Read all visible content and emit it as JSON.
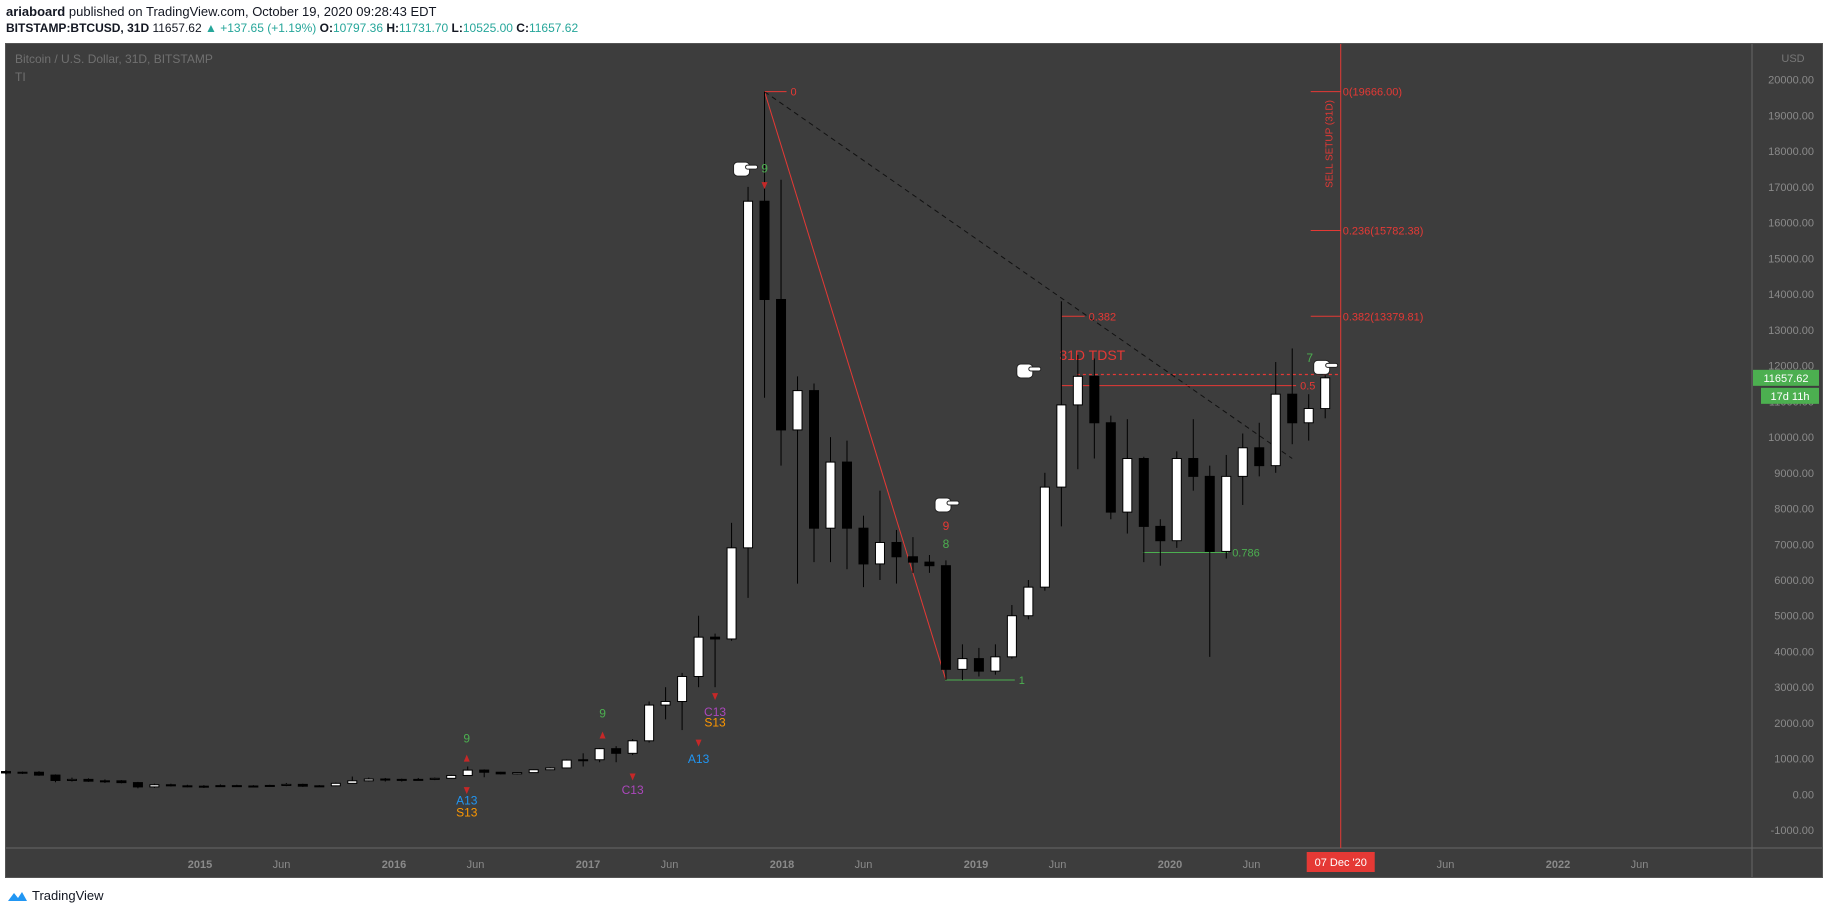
{
  "header": {
    "author": "ariaboard",
    "published": "published on TradingView.com, October 19, 2020 09:28:43 EDT",
    "symbol": "BITSTAMP:BTCUSD, 31D",
    "last": "11657.62",
    "change": "▲ +137.65 (+1.19%)",
    "o_label": "O:",
    "o": "10797.36",
    "h_label": "H:",
    "h": "11731.70",
    "l_label": "L:",
    "l": "10525.00",
    "c_label": "C:",
    "c": "11657.62"
  },
  "pane": {
    "title": "Bitcoin / U.S. Dollar, 31D, BITSTAMP",
    "indicator": "TI"
  },
  "footer": {
    "brand": "TradingView"
  },
  "colors": {
    "background": "#3d3d3d",
    "red": "#e53935",
    "green": "#4caf50",
    "current": "#4caf50"
  },
  "chart_data": {
    "type": "candlestick",
    "title": "Bitcoin / U.S. Dollar, 31D, BITSTAMP",
    "ylim": [
      -1500,
      21000
    ],
    "y_ticks": [
      -1000,
      0,
      1000,
      2000,
      3000,
      4000,
      5000,
      6000,
      7000,
      8000,
      9000,
      10000,
      11000,
      12000,
      13000,
      14000,
      15000,
      16000,
      17000,
      18000,
      19000,
      20000
    ],
    "y_tick_labels": [
      "-1000.00",
      "0.00",
      "1000.00",
      "2000.00",
      "3000.00",
      "4000.00",
      "5000.00",
      "6000.00",
      "7000.00",
      "8000.00",
      "9000.00",
      "10000.00",
      "11000.00",
      "12000.00",
      "13000.00",
      "14000.00",
      "15000.00",
      "16000.00",
      "17000.00",
      "18000.00",
      "19000.00",
      "20000.00"
    ],
    "x_ticks": [
      {
        "label": "2015",
        "t": 2015.0
      },
      {
        "label": "Jun",
        "t": 2015.42
      },
      {
        "label": "2016",
        "t": 2016.0
      },
      {
        "label": "Jun",
        "t": 2016.42
      },
      {
        "label": "2017",
        "t": 2017.0
      },
      {
        "label": "Jun",
        "t": 2017.42
      },
      {
        "label": "2018",
        "t": 2018.0
      },
      {
        "label": "Jun",
        "t": 2018.42
      },
      {
        "label": "2019",
        "t": 2019.0
      },
      {
        "label": "Jun",
        "t": 2019.42
      },
      {
        "label": "2020",
        "t": 2020.0
      },
      {
        "label": "Jun",
        "t": 2020.42
      },
      {
        "label": "Jun",
        "t": 2021.42
      },
      {
        "label": "2022",
        "t": 2022.0
      },
      {
        "label": "Jun",
        "t": 2022.42
      }
    ],
    "xlim": [
      2014.0,
      2023.0
    ],
    "candles": [
      {
        "t": 2014.0,
        "o": 640,
        "h": 680,
        "l": 560,
        "c": 600
      },
      {
        "t": 2014.085,
        "o": 600,
        "h": 640,
        "l": 570,
        "c": 620
      },
      {
        "t": 2014.17,
        "o": 620,
        "h": 650,
        "l": 520,
        "c": 540
      },
      {
        "t": 2014.255,
        "o": 540,
        "h": 560,
        "l": 340,
        "c": 390
      },
      {
        "t": 2014.34,
        "o": 390,
        "h": 470,
        "l": 360,
        "c": 420
      },
      {
        "t": 2014.425,
        "o": 420,
        "h": 450,
        "l": 350,
        "c": 370
      },
      {
        "t": 2014.51,
        "o": 370,
        "h": 420,
        "l": 320,
        "c": 380
      },
      {
        "t": 2014.595,
        "o": 380,
        "h": 400,
        "l": 310,
        "c": 330
      },
      {
        "t": 2014.68,
        "o": 330,
        "h": 350,
        "l": 170,
        "c": 210
      },
      {
        "t": 2014.765,
        "o": 210,
        "h": 300,
        "l": 180,
        "c": 270
      },
      {
        "t": 2014.85,
        "o": 270,
        "h": 300,
        "l": 220,
        "c": 240
      },
      {
        "t": 2014.935,
        "o": 240,
        "h": 270,
        "l": 200,
        "c": 220
      },
      {
        "t": 2015.02,
        "o": 220,
        "h": 260,
        "l": 180,
        "c": 230
      },
      {
        "t": 2015.105,
        "o": 230,
        "h": 280,
        "l": 210,
        "c": 245
      },
      {
        "t": 2015.19,
        "o": 245,
        "h": 270,
        "l": 220,
        "c": 235
      },
      {
        "t": 2015.275,
        "o": 235,
        "h": 260,
        "l": 210,
        "c": 230
      },
      {
        "t": 2015.36,
        "o": 230,
        "h": 270,
        "l": 220,
        "c": 250
      },
      {
        "t": 2015.445,
        "o": 250,
        "h": 320,
        "l": 230,
        "c": 280
      },
      {
        "t": 2015.53,
        "o": 280,
        "h": 300,
        "l": 210,
        "c": 230
      },
      {
        "t": 2015.615,
        "o": 230,
        "h": 260,
        "l": 220,
        "c": 240
      },
      {
        "t": 2015.7,
        "o": 240,
        "h": 330,
        "l": 230,
        "c": 310
      },
      {
        "t": 2015.785,
        "o": 310,
        "h": 500,
        "l": 300,
        "c": 380
      },
      {
        "t": 2015.87,
        "o": 380,
        "h": 470,
        "l": 360,
        "c": 430
      },
      {
        "t": 2015.955,
        "o": 430,
        "h": 460,
        "l": 360,
        "c": 410
      },
      {
        "t": 2016.04,
        "o": 410,
        "h": 440,
        "l": 360,
        "c": 420
      },
      {
        "t": 2016.125,
        "o": 420,
        "h": 460,
        "l": 400,
        "c": 420
      },
      {
        "t": 2016.21,
        "o": 420,
        "h": 470,
        "l": 400,
        "c": 450
      },
      {
        "t": 2016.295,
        "o": 450,
        "h": 550,
        "l": 440,
        "c": 530
      },
      {
        "t": 2016.38,
        "o": 530,
        "h": 780,
        "l": 520,
        "c": 680
      },
      {
        "t": 2016.465,
        "o": 680,
        "h": 700,
        "l": 480,
        "c": 620
      },
      {
        "t": 2016.55,
        "o": 620,
        "h": 630,
        "l": 560,
        "c": 575
      },
      {
        "t": 2016.635,
        "o": 575,
        "h": 620,
        "l": 560,
        "c": 610
      },
      {
        "t": 2016.72,
        "o": 610,
        "h": 700,
        "l": 600,
        "c": 690
      },
      {
        "t": 2016.805,
        "o": 690,
        "h": 760,
        "l": 680,
        "c": 740
      },
      {
        "t": 2016.89,
        "o": 740,
        "h": 980,
        "l": 730,
        "c": 960
      },
      {
        "t": 2016.975,
        "o": 960,
        "h": 1150,
        "l": 780,
        "c": 970
      },
      {
        "t": 2017.06,
        "o": 970,
        "h": 1300,
        "l": 900,
        "c": 1280
      },
      {
        "t": 2017.145,
        "o": 1280,
        "h": 1350,
        "l": 900,
        "c": 1150
      },
      {
        "t": 2017.23,
        "o": 1150,
        "h": 1550,
        "l": 1100,
        "c": 1500
      },
      {
        "t": 2017.315,
        "o": 1500,
        "h": 2600,
        "l": 1450,
        "c": 2500
      },
      {
        "t": 2017.4,
        "o": 2500,
        "h": 3000,
        "l": 2100,
        "c": 2600
      },
      {
        "t": 2017.485,
        "o": 2600,
        "h": 3400,
        "l": 1800,
        "c": 3300
      },
      {
        "t": 2017.57,
        "o": 3300,
        "h": 5000,
        "l": 3000,
        "c": 4400
      },
      {
        "t": 2017.655,
        "o": 4400,
        "h": 4500,
        "l": 3000,
        "c": 4350
      },
      {
        "t": 2017.74,
        "o": 4350,
        "h": 7600,
        "l": 4300,
        "c": 6900
      },
      {
        "t": 2017.825,
        "o": 6900,
        "h": 17000,
        "l": 5500,
        "c": 16600
      },
      {
        "t": 2017.91,
        "o": 16600,
        "h": 19666,
        "l": 11100,
        "c": 13850
      },
      {
        "t": 2017.995,
        "o": 13850,
        "h": 17200,
        "l": 9200,
        "c": 10200
      },
      {
        "t": 2018.08,
        "o": 10200,
        "h": 11700,
        "l": 5900,
        "c": 11300
      },
      {
        "t": 2018.165,
        "o": 11300,
        "h": 11500,
        "l": 6500,
        "c": 7450
      },
      {
        "t": 2018.25,
        "o": 7450,
        "h": 10000,
        "l": 6500,
        "c": 9300
      },
      {
        "t": 2018.335,
        "o": 9300,
        "h": 9900,
        "l": 6300,
        "c": 7450
      },
      {
        "t": 2018.42,
        "o": 7450,
        "h": 7800,
        "l": 5800,
        "c": 6450
      },
      {
        "t": 2018.505,
        "o": 6450,
        "h": 8500,
        "l": 6000,
        "c": 7050
      },
      {
        "t": 2018.59,
        "o": 7050,
        "h": 7400,
        "l": 5900,
        "c": 6650
      },
      {
        "t": 2018.675,
        "o": 6650,
        "h": 7200,
        "l": 6200,
        "c": 6500
      },
      {
        "t": 2018.76,
        "o": 6500,
        "h": 6700,
        "l": 6200,
        "c": 6400
      },
      {
        "t": 2018.845,
        "o": 6400,
        "h": 6550,
        "l": 3200,
        "c": 3500
      },
      {
        "t": 2018.93,
        "o": 3500,
        "h": 4200,
        "l": 3200,
        "c": 3800
      },
      {
        "t": 2019.015,
        "o": 3800,
        "h": 4100,
        "l": 3300,
        "c": 3450
      },
      {
        "t": 2019.1,
        "o": 3450,
        "h": 4200,
        "l": 3350,
        "c": 3850
      },
      {
        "t": 2019.185,
        "o": 3850,
        "h": 5300,
        "l": 3800,
        "c": 5000
      },
      {
        "t": 2019.27,
        "o": 5000,
        "h": 6000,
        "l": 4900,
        "c": 5800
      },
      {
        "t": 2019.355,
        "o": 5800,
        "h": 9000,
        "l": 5700,
        "c": 8600
      },
      {
        "t": 2019.44,
        "o": 8600,
        "h": 13800,
        "l": 7500,
        "c": 10900
      },
      {
        "t": 2019.525,
        "o": 10900,
        "h": 12300,
        "l": 9100,
        "c": 11700
      },
      {
        "t": 2019.61,
        "o": 11700,
        "h": 12200,
        "l": 9400,
        "c": 10400
      },
      {
        "t": 2019.695,
        "o": 10400,
        "h": 10600,
        "l": 7700,
        "c": 7900
      },
      {
        "t": 2019.78,
        "o": 7900,
        "h": 10500,
        "l": 7300,
        "c": 9400
      },
      {
        "t": 2019.865,
        "o": 9400,
        "h": 9450,
        "l": 6500,
        "c": 7500
      },
      {
        "t": 2019.95,
        "o": 7500,
        "h": 7700,
        "l": 6400,
        "c": 7100
      },
      {
        "t": 2020.035,
        "o": 7100,
        "h": 9600,
        "l": 6900,
        "c": 9400
      },
      {
        "t": 2020.12,
        "o": 9400,
        "h": 10500,
        "l": 8500,
        "c": 8900
      },
      {
        "t": 2020.205,
        "o": 8900,
        "h": 9200,
        "l": 3850,
        "c": 6800
      },
      {
        "t": 2020.29,
        "o": 6800,
        "h": 9500,
        "l": 6600,
        "c": 8900
      },
      {
        "t": 2020.375,
        "o": 8900,
        "h": 10100,
        "l": 8100,
        "c": 9700
      },
      {
        "t": 2020.46,
        "o": 9700,
        "h": 10400,
        "l": 8900,
        "c": 9200
      },
      {
        "t": 2020.545,
        "o": 9200,
        "h": 12100,
        "l": 9000,
        "c": 11200
      },
      {
        "t": 2020.63,
        "o": 11200,
        "h": 12480,
        "l": 9800,
        "c": 10400
      },
      {
        "t": 2020.715,
        "o": 10400,
        "h": 11200,
        "l": 9900,
        "c": 10800
      },
      {
        "t": 2020.8,
        "o": 10797.36,
        "h": 11731.7,
        "l": 10525.0,
        "c": 11657.62
      }
    ],
    "fib_levels": [
      {
        "label": "0(19666.00)",
        "value": 19666.0
      },
      {
        "label": "0.236(15782.38)",
        "value": 15782.38
      },
      {
        "label": "0.382(13379.81)",
        "value": 13379.81
      }
    ],
    "fib_inner": [
      {
        "label": "0",
        "value": 19666.0
      },
      {
        "label": "0.382",
        "value": 13379.81
      },
      {
        "label": "0.5",
        "value": 11440
      },
      {
        "label": "0.786",
        "value": 6770
      },
      {
        "label": "1",
        "value": 3200
      }
    ],
    "annotations": {
      "tdst_label": "31D TDST",
      "sell_setup_label": "SELL SETUP (31D)",
      "price_label": "11657.62",
      "countdown_label": "17d 11h",
      "vline_date_label": "07 Dec '20",
      "currency_label": "USD",
      "setup_counts": [
        {
          "text": "9",
          "t": 2016.375,
          "v": 1450,
          "color": "#4caf50"
        },
        {
          "text": "9",
          "t": 2017.075,
          "v": 2150,
          "color": "#4caf50"
        },
        {
          "text": "9",
          "t": 2017.91,
          "v": 17400,
          "color": "#4caf50"
        },
        {
          "text": "9",
          "t": 2018.845,
          "v": 7400,
          "color": "#e53935"
        },
        {
          "text": "8",
          "t": 2018.845,
          "v": 6900,
          "color": "#4caf50"
        },
        {
          "text": "7",
          "t": 2020.72,
          "v": 12100,
          "color": "#4caf50"
        }
      ],
      "countdown_labels": [
        {
          "text": "A13",
          "t": 2016.375,
          "v": -280,
          "color": "#2196f3"
        },
        {
          "text": "S13",
          "t": 2016.375,
          "v": -620,
          "color": "#ff9800"
        },
        {
          "text": "C13",
          "t": 2017.23,
          "v": 10,
          "color": "#ab47bc"
        },
        {
          "text": "A13",
          "t": 2017.57,
          "v": 880,
          "color": "#2196f3"
        },
        {
          "text": "C13",
          "t": 2017.655,
          "v": 2200,
          "color": "#ab47bc"
        },
        {
          "text": "S13",
          "t": 2017.655,
          "v": 1900,
          "color": "#ff9800"
        }
      ]
    }
  }
}
